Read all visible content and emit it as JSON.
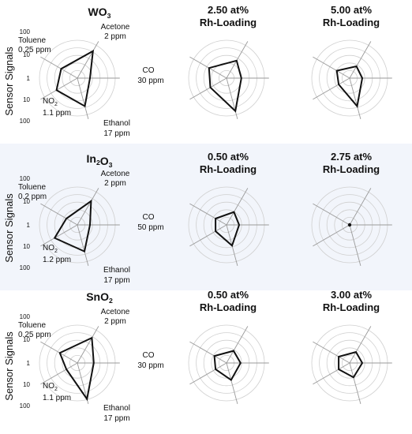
{
  "figure": {
    "band_color": "#f2f5fb",
    "grid_color": "#cfcfcf",
    "axis_color": "#9a9a9a",
    "line_color": "#111111",
    "ylabel": "Sensor Signals",
    "scale_ticks": [
      "100",
      "10",
      "1",
      "10",
      "100"
    ]
  },
  "chart_data": [
    {
      "type": "radar",
      "row": 0,
      "col": 0,
      "scale": "log",
      "title": "WO3",
      "labels": {
        "acetone": [
          "Acetone",
          "2 ppm"
        ],
        "co": [
          "CO",
          "30 ppm"
        ],
        "ethanol": [
          "Ethanol",
          "17 ppm"
        ],
        "no2": [
          "NO2",
          "1.1 ppm"
        ],
        "toluene": [
          "Toluene",
          "0.25 ppm"
        ]
      },
      "values": {
        "acetone": 30,
        "co": 1,
        "ethanol": 20,
        "no2": 8,
        "toluene": 3
      }
    },
    {
      "type": "radar",
      "row": 0,
      "col": 1,
      "scale": "log",
      "title": [
        "2.50 at%",
        "Rh-Loading"
      ],
      "values": {
        "acetone": 4,
        "co": 1.5,
        "ethanol": 50,
        "no2": 3,
        "toluene": 4
      }
    },
    {
      "type": "radar",
      "row": 0,
      "col": 2,
      "scale": "log",
      "title": [
        "5.00 at%",
        "Rh-Loading"
      ],
      "values": {
        "acetone": 1.2,
        "co": 1,
        "ethanol": 20,
        "no2": 1,
        "toluene": 1.5
      }
    },
    {
      "type": "radar",
      "row": 1,
      "col": 0,
      "scale": "log",
      "title": "In2O3",
      "labels": {
        "acetone": [
          "Acetone",
          "2 ppm"
        ],
        "co": [
          "CO",
          "50 ppm"
        ],
        "ethanol": [
          "Ethanol",
          "17 ppm"
        ],
        "no2": [
          "NO2",
          "1.2 ppm"
        ],
        "toluene": [
          "Toluene",
          "0.2 ppm"
        ]
      },
      "values": {
        "acetone": 15,
        "co": 1,
        "ethanol": 15,
        "no2": 12,
        "toluene": 1
      }
    },
    {
      "type": "radar",
      "row": 1,
      "col": 1,
      "scale": "log",
      "title": [
        "0.50 at%",
        "Rh-Loading"
      ],
      "values": {
        "acetone": 1.5,
        "co": 1,
        "ethanol": 5,
        "no2": 1,
        "toluene": 1
      }
    },
    {
      "type": "radar",
      "row": 1,
      "col": 2,
      "scale": "log",
      "title": [
        "2.75 at%",
        "Rh-Loading"
      ],
      "values": {
        "acetone": 1,
        "co": 1,
        "ethanol": 1,
        "no2": 1,
        "toluene": 1
      }
    },
    {
      "type": "radar",
      "row": 2,
      "col": 0,
      "scale": "log",
      "title": "SnO2",
      "labels": {
        "acetone": [
          "Acetone",
          "2 ppm"
        ],
        "co": [
          "CO",
          "30 ppm"
        ],
        "ethanol": [
          "Ethanol",
          "17 ppm"
        ],
        "no2": [
          "NO2",
          "1.1 ppm"
        ],
        "toluene": [
          "Toluene",
          "0.25 ppm"
        ]
      },
      "values": {
        "acetone": 20,
        "co": 2,
        "ethanol": 90,
        "no2": 1,
        "toluene": 4
      }
    },
    {
      "type": "radar",
      "row": 2,
      "col": 1,
      "scale": "log",
      "title": [
        "0.50 at%",
        "Rh-Loading"
      ],
      "values": {
        "acetone": 1.3,
        "co": 1.3,
        "ethanol": 2.5,
        "no2": 1,
        "toluene": 1.3
      }
    },
    {
      "type": "radar",
      "row": 2,
      "col": 2,
      "scale": "log",
      "title": [
        "3.00 at%",
        "Rh-Loading"
      ],
      "values": {
        "acetone": 1,
        "co": 1,
        "ethanol": 1.5,
        "no2": 1,
        "toluene": 1
      }
    }
  ]
}
